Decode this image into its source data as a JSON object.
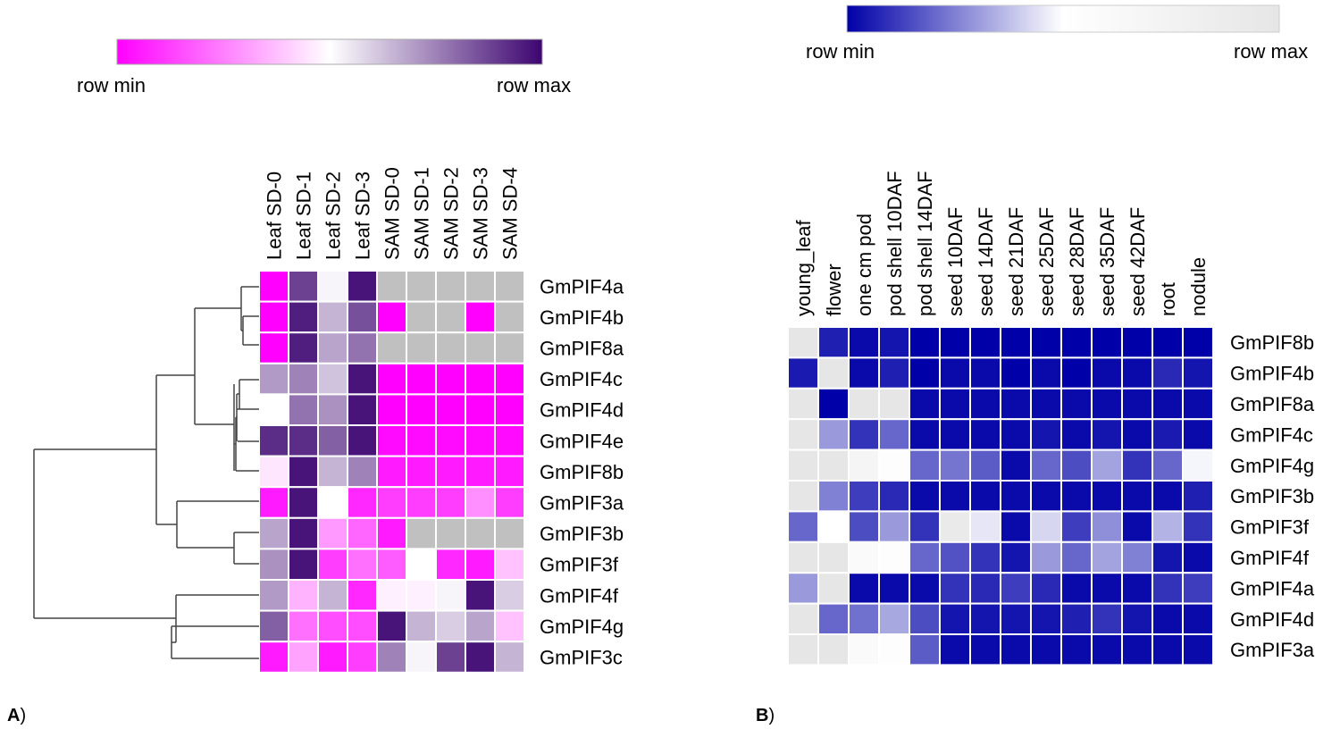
{
  "panels": [
    {
      "label_letter": "A",
      "label_paren": ")",
      "legend": {
        "min_label": "row min",
        "max_label": "row max"
      }
    },
    {
      "label_letter": "B",
      "label_paren": ")",
      "legend": {
        "min_label": "row min",
        "max_label": "row max"
      }
    }
  ],
  "chart_data": [
    {
      "type": "heatmap",
      "title": "",
      "color_scale": {
        "low": "#ff00ff",
        "mid": "#ffffff",
        "high": "#3d0570",
        "na": "#c0c0c0"
      },
      "columns": [
        "Leaf SD-0",
        "Leaf SD-1",
        "Leaf SD-2",
        "Leaf SD-3",
        "SAM SD-0",
        "SAM SD-1",
        "SAM SD-2",
        "SAM SD-3",
        "SAM SD-4"
      ],
      "rows": [
        "GmPIF4a",
        "GmPIF4b",
        "GmPIF8a",
        "GmPIF4c",
        "GmPIF4d",
        "GmPIF4e",
        "GmPIF8b",
        "GmPIF3a",
        "GmPIF3b",
        "GmPIF3f",
        "GmPIF4f",
        "GmPIF4g",
        "GmPIF3c"
      ],
      "values_note_scale": "0 = row min, 1 = row max, null = not shown (grey)",
      "values": [
        [
          0.0,
          0.88,
          0.52,
          0.97,
          null,
          null,
          null,
          null,
          null
        ],
        [
          0.0,
          0.95,
          0.65,
          0.85,
          0.0,
          null,
          null,
          0.0,
          null
        ],
        [
          0.0,
          0.95,
          0.68,
          0.78,
          null,
          null,
          null,
          null,
          null
        ],
        [
          0.7,
          0.75,
          0.62,
          0.97,
          0.0,
          0.0,
          0.0,
          0.0,
          0.0
        ],
        [
          0.5,
          0.78,
          0.72,
          0.97,
          0.0,
          0.0,
          0.0,
          0.0,
          0.0
        ],
        [
          0.92,
          0.92,
          0.82,
          0.97,
          0.02,
          0.02,
          0.02,
          0.02,
          0.02
        ],
        [
          0.45,
          0.97,
          0.65,
          0.75,
          0.05,
          0.05,
          0.05,
          0.05,
          0.05
        ],
        [
          0.05,
          0.97,
          0.5,
          0.08,
          0.12,
          0.12,
          0.12,
          0.28,
          0.12
        ],
        [
          0.68,
          0.97,
          0.3,
          0.2,
          0.05,
          null,
          null,
          null,
          null
        ],
        [
          0.72,
          0.97,
          0.12,
          0.22,
          0.18,
          0.5,
          0.08,
          0.05,
          0.38
        ],
        [
          0.7,
          0.35,
          0.65,
          0.08,
          0.47,
          0.47,
          0.52,
          0.97,
          0.6
        ],
        [
          0.82,
          0.22,
          0.15,
          0.15,
          0.97,
          0.65,
          0.6,
          0.68,
          0.38
        ],
        [
          0.05,
          0.32,
          0.05,
          0.12,
          0.75,
          0.52,
          0.88,
          0.97,
          0.65
        ]
      ],
      "dendrogram": "row"
    },
    {
      "type": "heatmap",
      "title": "",
      "color_scale": {
        "low": "#0000a8",
        "mid": "#ffffff",
        "high": "#e6e6e6"
      },
      "columns": [
        "young_leaf",
        "flower",
        "one cm pod",
        "pod shell 10DAF",
        "pod shell 14DAF",
        "seed 10DAF",
        "seed 14DAF",
        "seed 21DAF",
        "seed 25DAF",
        "seed 28DAF",
        "seed 35DAF",
        "seed 42DAF",
        "root",
        "nodule"
      ],
      "rows": [
        "GmPIF8b",
        "GmPIF4b",
        "GmPIF8a",
        "GmPIF4c",
        "GmPIF4g",
        "GmPIF3b",
        "GmPIF3f",
        "GmPIF4f",
        "GmPIF4a",
        "GmPIF4d",
        "GmPIF3a"
      ],
      "values_note_scale": "0 = row min, 1 = row max",
      "values": [
        [
          1.0,
          0.06,
          0.02,
          0.04,
          0.0,
          0.0,
          0.0,
          0.0,
          0.0,
          0.0,
          0.0,
          0.0,
          0.0,
          0.0
        ],
        [
          0.05,
          1.0,
          0.02,
          0.06,
          0.0,
          0.02,
          0.02,
          0.0,
          0.02,
          0.0,
          0.02,
          0.02,
          0.08,
          0.04
        ],
        [
          1.0,
          0.0,
          1.0,
          1.0,
          0.02,
          0.02,
          0.02,
          0.02,
          0.02,
          0.02,
          0.02,
          0.02,
          0.02,
          0.02
        ],
        [
          1.0,
          0.3,
          0.1,
          0.2,
          0.02,
          0.02,
          0.02,
          0.02,
          0.04,
          0.02,
          0.04,
          0.02,
          0.05,
          0.02
        ],
        [
          1.0,
          1.0,
          0.7,
          0.55,
          0.2,
          0.23,
          0.18,
          0.02,
          0.2,
          0.15,
          0.32,
          0.1,
          0.2,
          0.48
        ],
        [
          1.0,
          0.25,
          0.12,
          0.08,
          0.02,
          0.02,
          0.02,
          0.02,
          0.02,
          0.02,
          0.02,
          0.02,
          0.02,
          0.06
        ],
        [
          0.2,
          0.5,
          0.15,
          0.3,
          0.1,
          0.92,
          0.45,
          0.02,
          0.42,
          0.12,
          0.28,
          0.02,
          0.35,
          0.1
        ],
        [
          1.0,
          1.0,
          0.6,
          0.55,
          0.2,
          0.16,
          0.1,
          0.04,
          0.3,
          0.2,
          0.32,
          0.25,
          0.04,
          0.02
        ],
        [
          0.3,
          1.0,
          0.02,
          0.02,
          0.02,
          0.1,
          0.08,
          0.12,
          0.08,
          0.02,
          0.02,
          0.02,
          0.1,
          0.12
        ],
        [
          1.0,
          0.2,
          0.22,
          0.33,
          0.15,
          0.04,
          0.04,
          0.04,
          0.04,
          0.06,
          0.1,
          0.04,
          0.02,
          0.02
        ],
        [
          1.0,
          1.0,
          0.6,
          0.55,
          0.18,
          0.02,
          0.02,
          0.02,
          0.02,
          0.02,
          0.02,
          0.02,
          0.02,
          0.02
        ]
      ]
    }
  ]
}
